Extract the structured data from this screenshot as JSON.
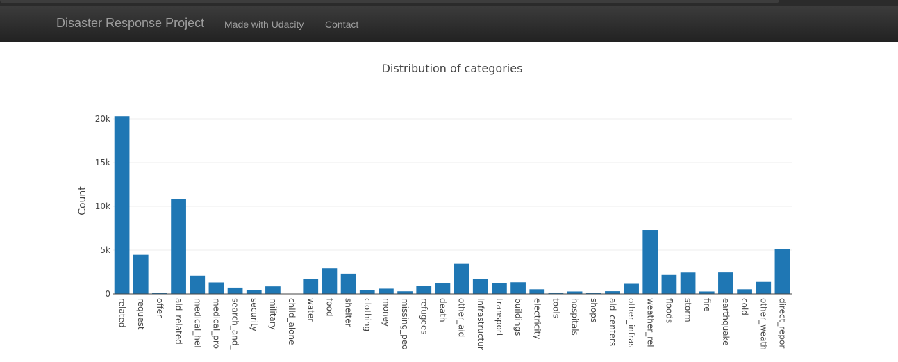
{
  "navbar": {
    "brand": "Disaster Response Project",
    "links": [
      "Made with Udacity",
      "Contact"
    ]
  },
  "colors": {
    "bar": "#1f77b4",
    "navbar_text": "#9d9d9d",
    "grid": "#eeeeee"
  },
  "chart_data": {
    "type": "bar",
    "title": "Distribution of categories",
    "xlabel": "",
    "ylabel": "Count",
    "ylim": [
      0,
      21000
    ],
    "yticks": [
      0,
      5000,
      10000,
      15000,
      20000
    ],
    "ytick_labels": [
      "0",
      "5k",
      "10k",
      "15k",
      "20k"
    ],
    "grid": true,
    "categories": [
      "related",
      "request",
      "offer",
      "aid_related",
      "medical_help",
      "medical_products",
      "search_and_rescue",
      "security",
      "military",
      "child_alone",
      "water",
      "food",
      "shelter",
      "clothing",
      "money",
      "missing_people",
      "refugees",
      "death",
      "other_aid",
      "infrastructure_related",
      "transport",
      "buildings",
      "electricity",
      "tools",
      "hospitals",
      "shops",
      "aid_centers",
      "other_infrastructure",
      "weather_related",
      "floods",
      "storm",
      "fire",
      "earthquake",
      "cold",
      "other_weather",
      "direct_report"
    ],
    "tick_labels": [
      "related",
      "request",
      "offer",
      "aid_related",
      "medical_hel",
      "medical_pro",
      "search_and_",
      "security",
      "military",
      "child_alone",
      "water",
      "food",
      "shelter",
      "clothing",
      "money",
      "missing_peo",
      "refugees",
      "death",
      "other_aid",
      "infrastructur",
      "transport",
      "buildings",
      "electricity",
      "tools",
      "hospitals",
      "shops",
      "aid_centers",
      "other_infras",
      "weather_rel",
      "floods",
      "storm",
      "fire",
      "earthquake",
      "cold",
      "other_weath",
      "direct_repor"
    ],
    "values": [
      20300,
      4470,
      120,
      10860,
      2080,
      1310,
      720,
      470,
      860,
      0,
      1670,
      2920,
      2310,
      400,
      600,
      300,
      880,
      1190,
      3440,
      1700,
      1200,
      1330,
      530,
      160,
      280,
      120,
      310,
      1150,
      7300,
      2160,
      2440,
      280,
      2450,
      530,
      1370,
      5080
    ]
  }
}
